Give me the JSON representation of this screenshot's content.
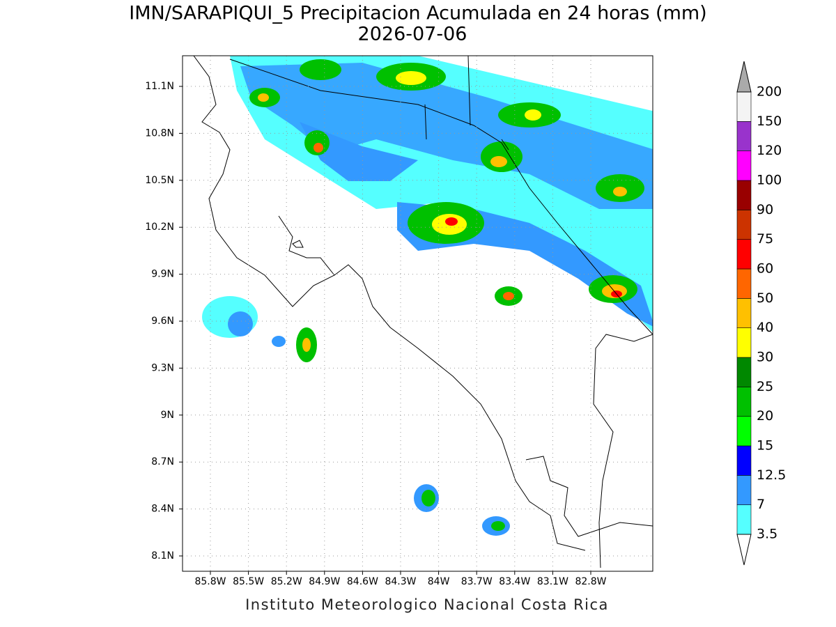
{
  "map": {
    "title": "IMN/SARAPIQUI_5 Precipitacion Acumulada en 24 horas (mm)",
    "date": "2026-07-06",
    "lat_labels": [
      "11.1N",
      "10.8N",
      "10.5N",
      "10.2N",
      "9.9N",
      "9.6N",
      "9.3N",
      "9N",
      "8.7N",
      "8.4N",
      "8.1N"
    ],
    "lon_labels": [
      "85.8W",
      "85.5W",
      "85.2W",
      "84.9W",
      "84.6W",
      "84.3W",
      "84W",
      "83.7W",
      "83.4W",
      "83.1W",
      "82.8W"
    ],
    "footer": "Instituto Meteorologico Nacional Costa Rica",
    "colorbar": {
      "levels": [
        3.5,
        7,
        12.5,
        15,
        20,
        25,
        30,
        40,
        50,
        60,
        75,
        90,
        100,
        120,
        150,
        200
      ],
      "colors": [
        "#55ffff",
        "#3399ff",
        "#0000ff",
        "#00ff00",
        "#00c000",
        "#008800",
        "#ffff00",
        "#ffc000",
        "#ff6600",
        "#ff0000",
        "#cc3300",
        "#990000",
        "#ff00ff",
        "#9933cc",
        "#f4f4f4"
      ],
      "over_color": "#aaaaaa",
      "under_color": "#ffffff"
    }
  }
}
